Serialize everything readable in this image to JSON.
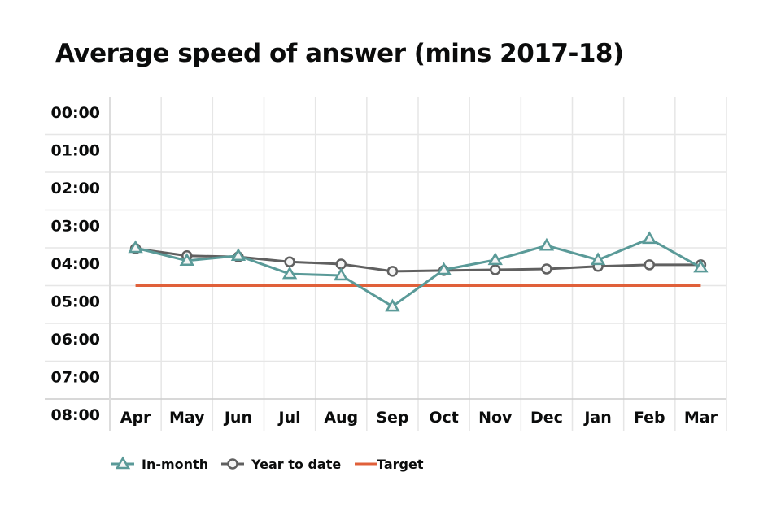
{
  "chart_data": {
    "type": "line",
    "title": "Average speed of answer (mins 2017-18)",
    "categories": [
      "Apr",
      "May",
      "Jun",
      "Jul",
      "Aug",
      "Sep",
      "Oct",
      "Nov",
      "Dec",
      "Jan",
      "Feb",
      "Mar"
    ],
    "y_ticks": [
      "00:00",
      "01:00",
      "02:00",
      "03:00",
      "04:00",
      "05:00",
      "06:00",
      "07:00",
      "08:00"
    ],
    "ylim": [
      0,
      8
    ],
    "y_inverted": true,
    "y_unit": "minutes",
    "grid": true,
    "legend_position": "bottom-left",
    "series": [
      {
        "name": "In-month",
        "color": "#5a9a98",
        "marker": "triangle",
        "values": [
          4.0,
          4.34,
          4.21,
          4.69,
          4.73,
          5.55,
          4.58,
          4.32,
          3.94,
          4.32,
          3.76,
          4.52
        ]
      },
      {
        "name": "Year to date",
        "color": "#606060",
        "marker": "circle",
        "values": [
          4.02,
          4.21,
          4.24,
          4.37,
          4.43,
          4.62,
          4.6,
          4.58,
          4.56,
          4.49,
          4.45,
          4.45
        ]
      },
      {
        "name": "Target",
        "color": "#e0603a",
        "marker": "none",
        "values": [
          5,
          5,
          5,
          5,
          5,
          5,
          5,
          5,
          5,
          5,
          5,
          5
        ]
      }
    ]
  }
}
